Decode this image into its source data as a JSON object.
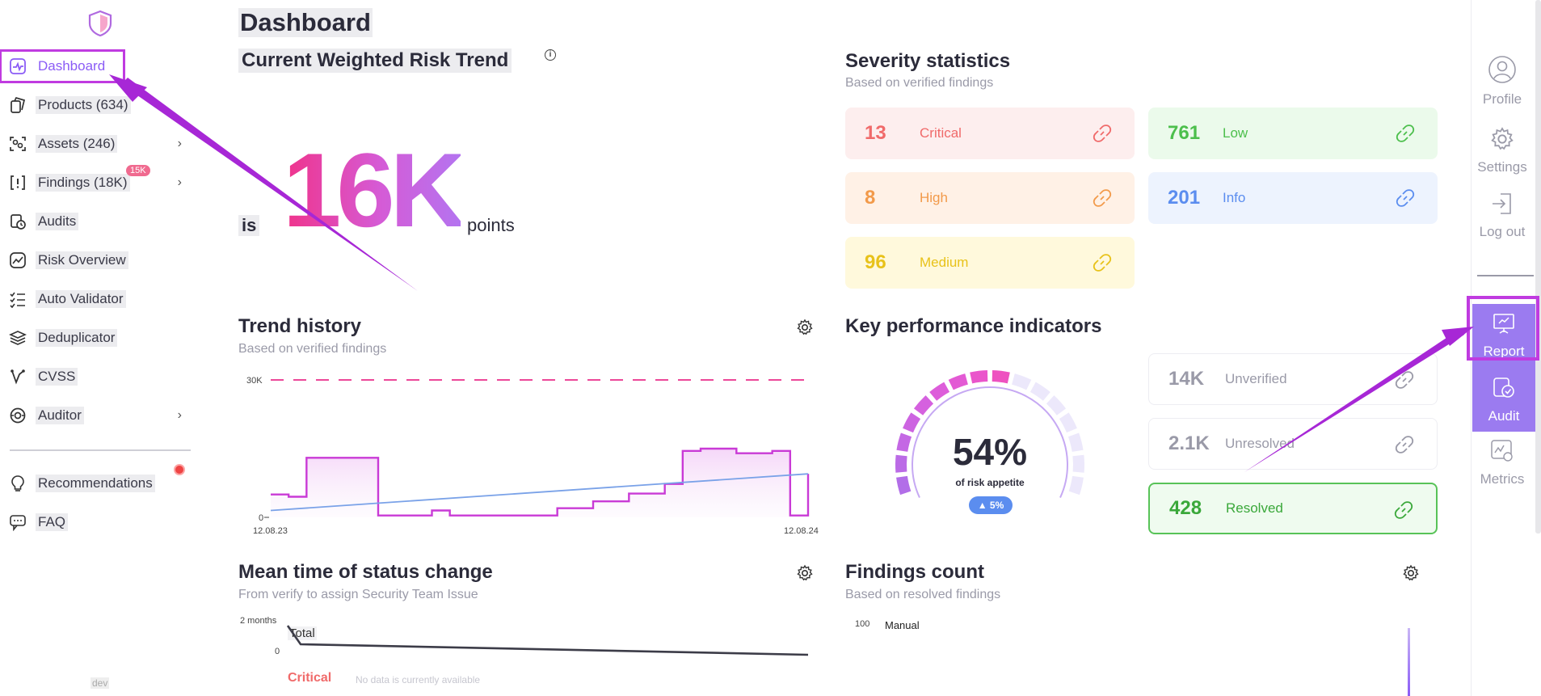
{
  "sidebar": {
    "items": [
      {
        "label": "Dashboard",
        "icon": "pulse-icon"
      },
      {
        "label": "Products (634)",
        "icon": "products-icon"
      },
      {
        "label": "Assets (246)",
        "icon": "assets-icon"
      },
      {
        "label": "Findings (18K)",
        "icon": "findings-icon",
        "badge": "15K"
      },
      {
        "label": "Audits",
        "icon": "audits-icon"
      },
      {
        "label": "Risk Overview",
        "icon": "risk-icon"
      },
      {
        "label": "Auto Validator",
        "icon": "checklist-icon"
      },
      {
        "label": "Deduplicator",
        "icon": "layers-icon"
      },
      {
        "label": "CVSS",
        "icon": "cvss-icon"
      },
      {
        "label": "Auditor",
        "icon": "auditor-icon"
      },
      {
        "label": "Recommendations",
        "icon": "bulb-icon"
      },
      {
        "label": "FAQ",
        "icon": "faq-icon"
      }
    ],
    "env": "dev"
  },
  "page": {
    "title": "Dashboard"
  },
  "risk": {
    "title": "Current Weighted Risk Trend",
    "prefix": "is",
    "value": "16K",
    "suffix": "points"
  },
  "severity": {
    "title": "Severity statistics",
    "subtitle": "Based on verified findings",
    "cards": [
      {
        "num": "13",
        "label": "Critical",
        "color": "#f06a6a",
        "bg": "#fdeeee"
      },
      {
        "num": "761",
        "label": "Low",
        "color": "#4cbf4c",
        "bg": "#ebfaeb"
      },
      {
        "num": "8",
        "label": "High",
        "color": "#f29a4a",
        "bg": "#fff1e6"
      },
      {
        "num": "201",
        "label": "Info",
        "color": "#5b8def",
        "bg": "#edf3fe"
      },
      {
        "num": "96",
        "label": "Medium",
        "color": "#e8c21a",
        "bg": "#fff9dc"
      }
    ]
  },
  "trend": {
    "title": "Trend history",
    "subtitle": "Based on verified findings",
    "chart_data": {
      "type": "line",
      "y_ticks": [
        "30K",
        "0"
      ],
      "x_labels": [
        "12.08.23",
        "12.08.24"
      ],
      "ylim": [
        0,
        30000
      ],
      "threshold": 30000,
      "series": [
        {
          "color": "#c93ad6",
          "values": [
            5000,
            4500,
            13000,
            13000,
            13000,
            13000,
            400,
            400,
            400,
            1500,
            400,
            400,
            400,
            400,
            400,
            400,
            2000,
            2000,
            3500,
            3500,
            5200,
            5200,
            7300,
            14500,
            15000,
            15000,
            14000,
            14000,
            14500,
            400,
            9500
          ]
        },
        {
          "color": "#7aa2e8",
          "values": [
            1500,
            9500
          ]
        }
      ]
    }
  },
  "kpi": {
    "title": "Key performance indicators",
    "gauge_pct": "54%",
    "gauge_value": 0.54,
    "gauge_sub": "of risk appetite",
    "gauge_chip": "▲ 5%",
    "cards": [
      {
        "num": "14K",
        "label": "Unverified"
      },
      {
        "num": "2.1K",
        "label": "Unresolved"
      },
      {
        "num": "428",
        "label": "Resolved"
      }
    ]
  },
  "mean_time": {
    "title": "Mean time of status change",
    "subtitle": "From verify to assign Security Team Issue",
    "y_top": "2 months",
    "y_zero": "0",
    "series_label": "Total",
    "critical_label": "Critical",
    "no_data": "No data is currently available"
  },
  "findings_count": {
    "title": "Findings count",
    "subtitle": "Based on resolved findings",
    "y_top": "100",
    "series_label": "Manual"
  },
  "rail": {
    "items": [
      {
        "label": "Profile",
        "icon": "user-icon"
      },
      {
        "label": "Settings",
        "icon": "gear-icon"
      },
      {
        "label": "Log out",
        "icon": "logout-icon"
      },
      {
        "label": "Report",
        "icon": "presentation-icon"
      },
      {
        "label": "Audit",
        "icon": "audit-icon"
      },
      {
        "label": "Metrics",
        "icon": "metrics-icon"
      }
    ]
  }
}
